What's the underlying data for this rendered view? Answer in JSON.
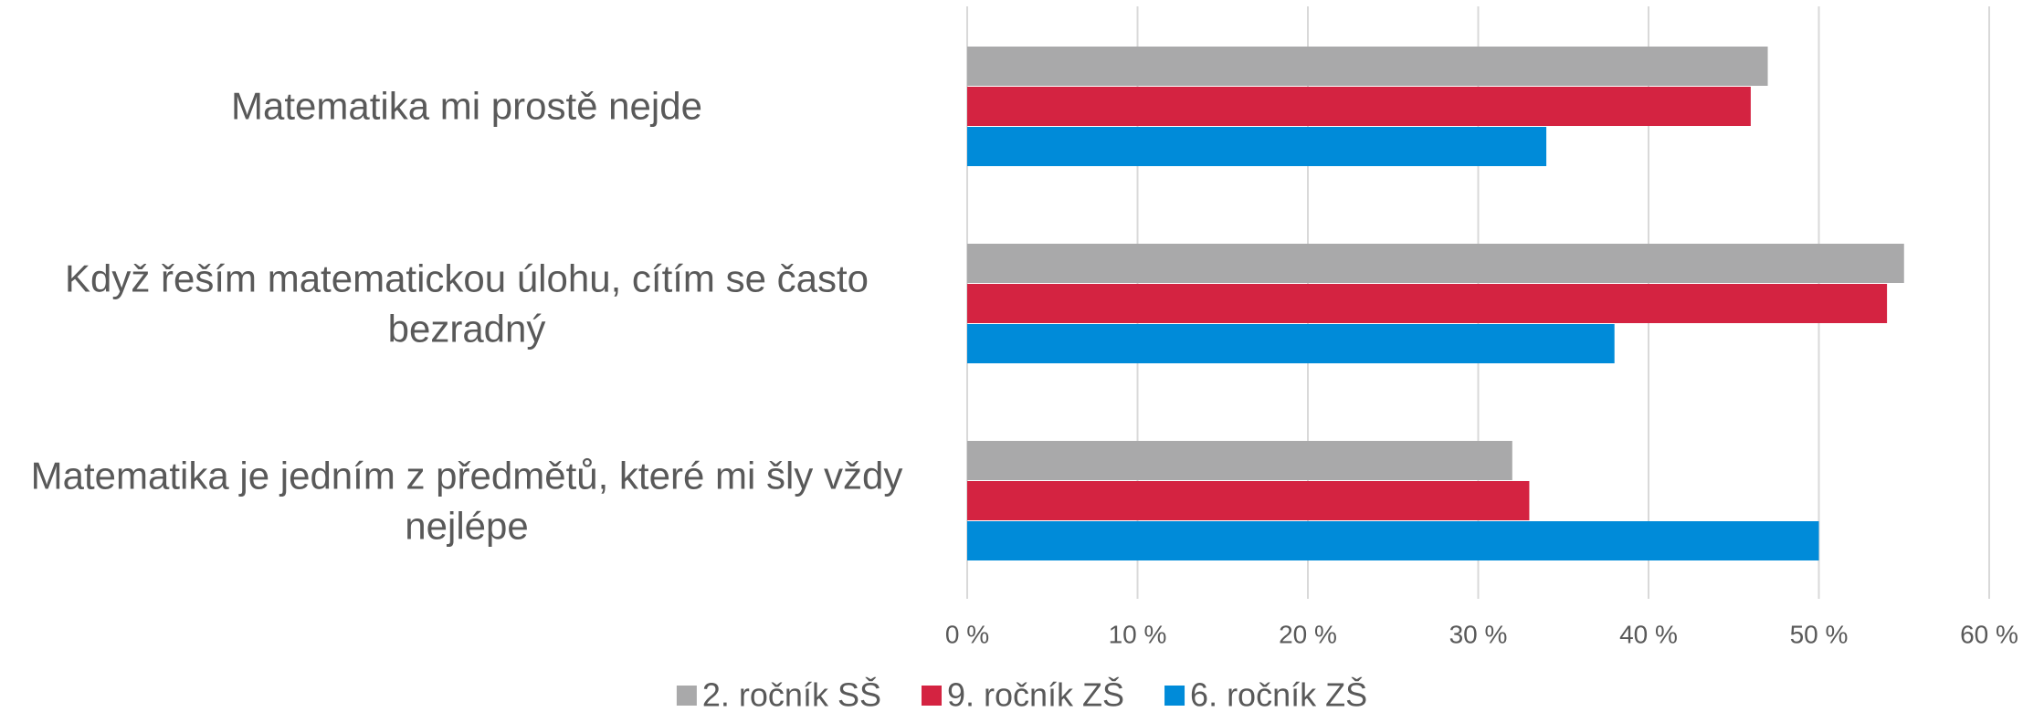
{
  "chart_data": {
    "type": "bar",
    "orientation": "horizontal",
    "categories": [
      "Matematika mi prostě nejde",
      "Když řeším matematickou úlohu, cítím se často bezradný",
      "Matematika je jedním z předmětů, které mi šly vždy nejlépe"
    ],
    "series": [
      {
        "name": "2. ročník SŠ",
        "color": "#a9a9aa",
        "values": [
          47,
          55,
          32
        ]
      },
      {
        "name": "9. ročník ZŠ",
        "color": "#d42341",
        "values": [
          46,
          54,
          33
        ]
      },
      {
        "name": "6. ročník ZŠ",
        "color": "#008bd9",
        "values": [
          34,
          38,
          50
        ]
      }
    ],
    "xlim": [
      0,
      60
    ],
    "xticks": [
      {
        "value": 0,
        "label": "0 %"
      },
      {
        "value": 10,
        "label": "10 %"
      },
      {
        "value": 20,
        "label": "20 %"
      },
      {
        "value": 30,
        "label": "30 %"
      },
      {
        "value": 40,
        "label": "40 %"
      },
      {
        "value": 50,
        "label": "50 %"
      },
      {
        "value": 60,
        "label": "60 %"
      }
    ],
    "grid": true,
    "legend": "bottom"
  }
}
